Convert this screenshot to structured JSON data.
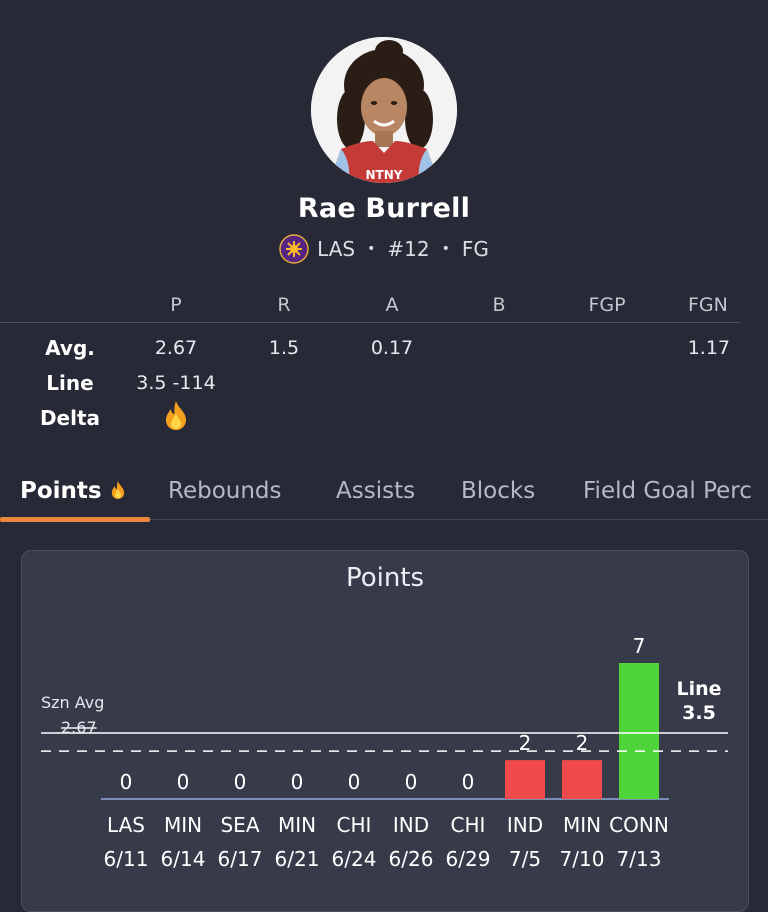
{
  "player": {
    "name": "Rae Burrell",
    "team": "LAS",
    "number": "#12",
    "position": "FG"
  },
  "stats": {
    "headers": [
      "P",
      "R",
      "A",
      "B",
      "FGP",
      "FGN"
    ],
    "avg_label": "Avg.",
    "line_label": "Line",
    "delta_label": "Delta",
    "avg": [
      "2.67",
      "1.5",
      "0.17",
      "",
      "",
      "1.17"
    ],
    "line": "3.5 -114",
    "delta_icon": "fire-icon"
  },
  "tabs": [
    {
      "label": "Points",
      "icon": "fire-icon"
    },
    {
      "label": "Rebounds"
    },
    {
      "label": "Assists"
    },
    {
      "label": "Blocks"
    },
    {
      "label": "Field Goal Perc"
    }
  ],
  "colors": {
    "accent": "#e9883d",
    "under": "#f04a4a",
    "over": "#4fd43a",
    "card": "#363a49",
    "background": "#272a36"
  },
  "chart_data": {
    "type": "bar",
    "title": "Points",
    "categories": [
      "LAS 6/11",
      "MIN 6/14",
      "SEA 6/17",
      "MIN 6/21",
      "CHI 6/24",
      "IND 6/26",
      "CHI 6/29",
      "IND 7/5",
      "MIN 7/10",
      "CONN 7/13"
    ],
    "teams": [
      "LAS",
      "MIN",
      "SEA",
      "MIN",
      "CHI",
      "IND",
      "CHI",
      "IND",
      "MIN",
      "CONN"
    ],
    "dates": [
      "6/11",
      "6/14",
      "6/17",
      "6/21",
      "6/24",
      "6/26",
      "6/29",
      "7/5",
      "7/10",
      "7/13"
    ],
    "values": [
      0,
      0,
      0,
      0,
      0,
      0,
      0,
      2,
      2,
      7
    ],
    "season_avg": 2.67,
    "season_avg_label": "Szn Avg",
    "season_avg_value_label": "2.67",
    "line": 3.5,
    "line_label": "Line",
    "line_value_label": "3.5",
    "ylim": [
      0,
      7
    ]
  }
}
